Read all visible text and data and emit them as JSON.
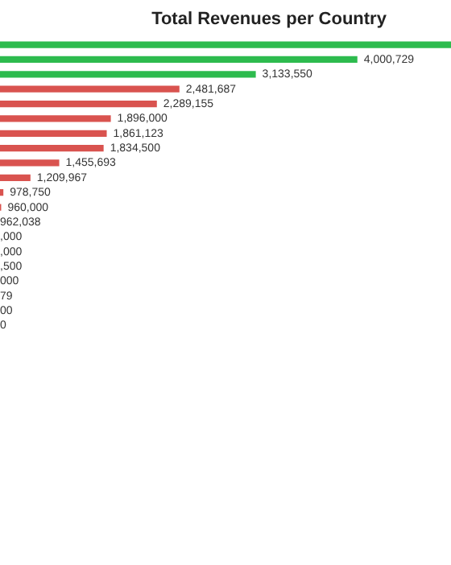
{
  "chart_data": {
    "type": "bar",
    "orientation": "horizontal",
    "title": "Total Revenues per Country",
    "categories": [
      null,
      null,
      null,
      null,
      null,
      null,
      null,
      null,
      null,
      null,
      null,
      null
    ],
    "values": [
      4800000,
      4000729,
      3133550,
      2481687,
      2289155,
      1896000,
      1861123,
      1834500,
      1455693,
      1209967,
      978750,
      960000
    ],
    "value_labels": [
      null,
      "4,000,729",
      "3,133,550",
      "2,481,687",
      "2,289,155",
      "1,896,000",
      "1,861,123",
      "1,834,500",
      "1,455,693",
      "1,209,967",
      "978,750",
      "960,000"
    ],
    "colors": [
      "#2dbb4e",
      "#2dbb4e",
      "#2dbb4e",
      "#d9534f",
      "#d9534f",
      "#d9534f",
      "#d9534f",
      "#d9534f",
      "#d9534f",
      "#d9534f",
      "#d9534f",
      "#d9534f"
    ],
    "annotations": [
      "962,038",
      ",000",
      ",000",
      ",500",
      "000",
      "79",
      "00",
      "0"
    ],
    "xlim": [
      950000,
      4800000
    ],
    "tick_labels": false
  }
}
